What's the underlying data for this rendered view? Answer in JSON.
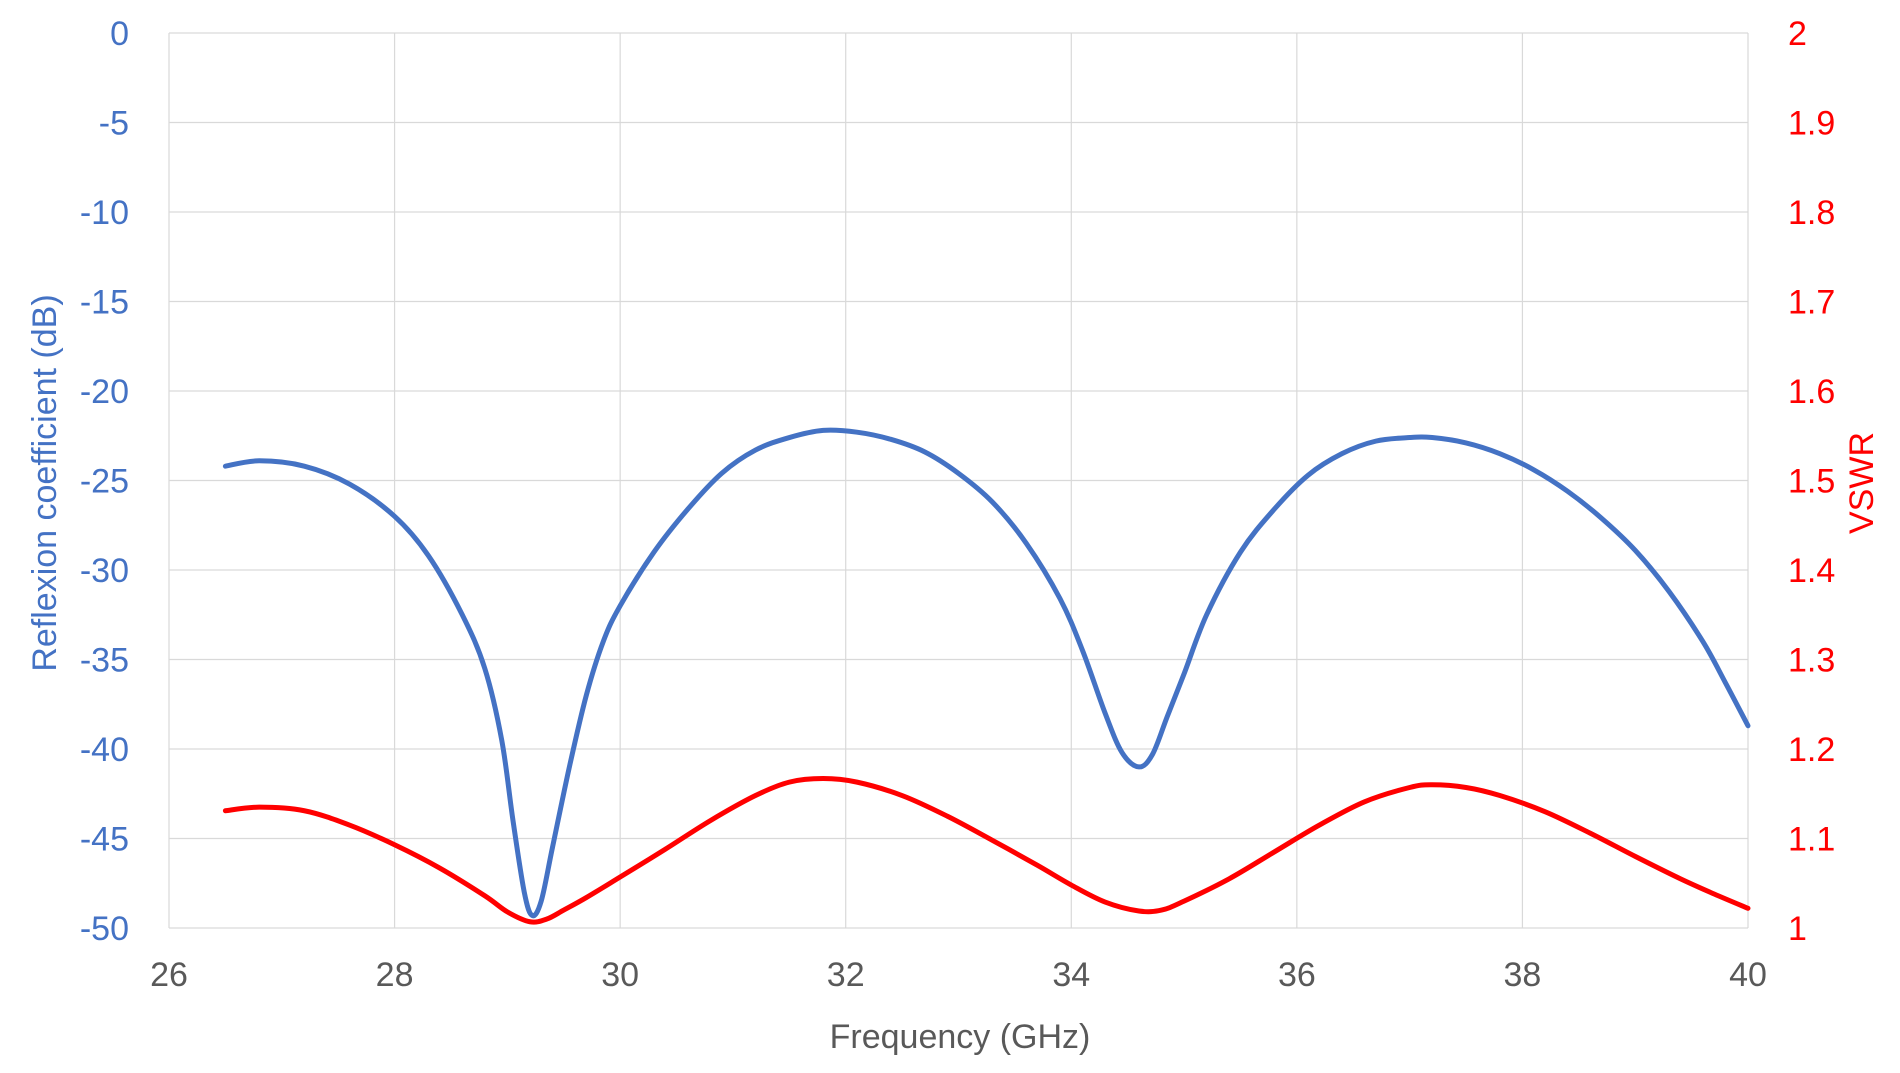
{
  "chart_data": {
    "type": "line",
    "xlabel": "Frequency (GHz)",
    "ylabel": "Reflexion coefficient (dB)",
    "y2label": "VSWR",
    "xlim": [
      26,
      40
    ],
    "ylim": [
      -50,
      0
    ],
    "y2lim": [
      1,
      2
    ],
    "xticks": [
      "26",
      "28",
      "30",
      "32",
      "34",
      "36",
      "38",
      "40"
    ],
    "yticks": [
      "0",
      "-5",
      "-10",
      "-15",
      "-20",
      "-25",
      "-30",
      "-35",
      "-40",
      "-45",
      "-50"
    ],
    "y2ticks": [
      "2",
      "1.9",
      "1.8",
      "1.7",
      "1.6",
      "1.5",
      "1.4",
      "1.3",
      "1.2",
      "1.1",
      "1"
    ],
    "grid": true,
    "colors": {
      "reflexion": "#4472c4",
      "vswr": "#ff0000",
      "grid": "#d9d9d9",
      "xaxis": "#595959"
    },
    "series": [
      {
        "axis": "left",
        "x": [
          26.5,
          26.8,
          27.2,
          27.6,
          28.0,
          28.3,
          28.6,
          28.8,
          28.95,
          29.05,
          29.15,
          29.22,
          29.3,
          29.4,
          29.55,
          29.7,
          29.85,
          30.0,
          30.3,
          30.6,
          30.9,
          31.2,
          31.5,
          31.8,
          32.1,
          32.4,
          32.7,
          33.0,
          33.3,
          33.6,
          33.9,
          34.1,
          34.3,
          34.45,
          34.6,
          34.72,
          34.85,
          35.0,
          35.2,
          35.5,
          35.8,
          36.1,
          36.4,
          36.7,
          37.0,
          37.2,
          37.5,
          37.8,
          38.1,
          38.4,
          38.7,
          39.0,
          39.3,
          39.6,
          39.8,
          40.0
        ],
        "values": [
          -24.2,
          -23.9,
          -24.2,
          -25.2,
          -27.0,
          -29.2,
          -32.5,
          -35.5,
          -39.5,
          -44.0,
          -48.0,
          -49.3,
          -48.5,
          -45.5,
          -41.0,
          -37.0,
          -34.0,
          -32.0,
          -29.0,
          -26.6,
          -24.6,
          -23.3,
          -22.6,
          -22.2,
          -22.3,
          -22.7,
          -23.4,
          -24.6,
          -26.2,
          -28.5,
          -31.6,
          -34.5,
          -38.0,
          -40.2,
          -41.0,
          -40.3,
          -38.2,
          -35.8,
          -32.5,
          -29.0,
          -26.6,
          -24.7,
          -23.5,
          -22.8,
          -22.6,
          -22.6,
          -22.9,
          -23.5,
          -24.4,
          -25.6,
          -27.1,
          -28.9,
          -31.2,
          -34.0,
          -36.3,
          -38.7
        ]
      },
      {
        "axis": "right",
        "x": [
          26.5,
          26.8,
          27.2,
          27.6,
          28.0,
          28.4,
          28.8,
          29.0,
          29.2,
          29.35,
          29.5,
          29.7,
          30.0,
          30.4,
          30.8,
          31.2,
          31.5,
          31.8,
          32.1,
          32.5,
          32.9,
          33.3,
          33.7,
          34.0,
          34.3,
          34.6,
          34.8,
          35.0,
          35.4,
          35.8,
          36.2,
          36.6,
          37.0,
          37.2,
          37.5,
          37.8,
          38.2,
          38.6,
          39.0,
          39.4,
          39.7,
          40.0
        ],
        "values": [
          1.131,
          1.135,
          1.131,
          1.115,
          1.093,
          1.067,
          1.036,
          1.018,
          1.007,
          1.01,
          1.02,
          1.034,
          1.057,
          1.088,
          1.12,
          1.148,
          1.163,
          1.167,
          1.163,
          1.148,
          1.125,
          1.098,
          1.07,
          1.048,
          1.029,
          1.019,
          1.02,
          1.03,
          1.055,
          1.085,
          1.115,
          1.141,
          1.157,
          1.16,
          1.157,
          1.148,
          1.13,
          1.106,
          1.08,
          1.055,
          1.038,
          1.022
        ]
      }
    ]
  }
}
